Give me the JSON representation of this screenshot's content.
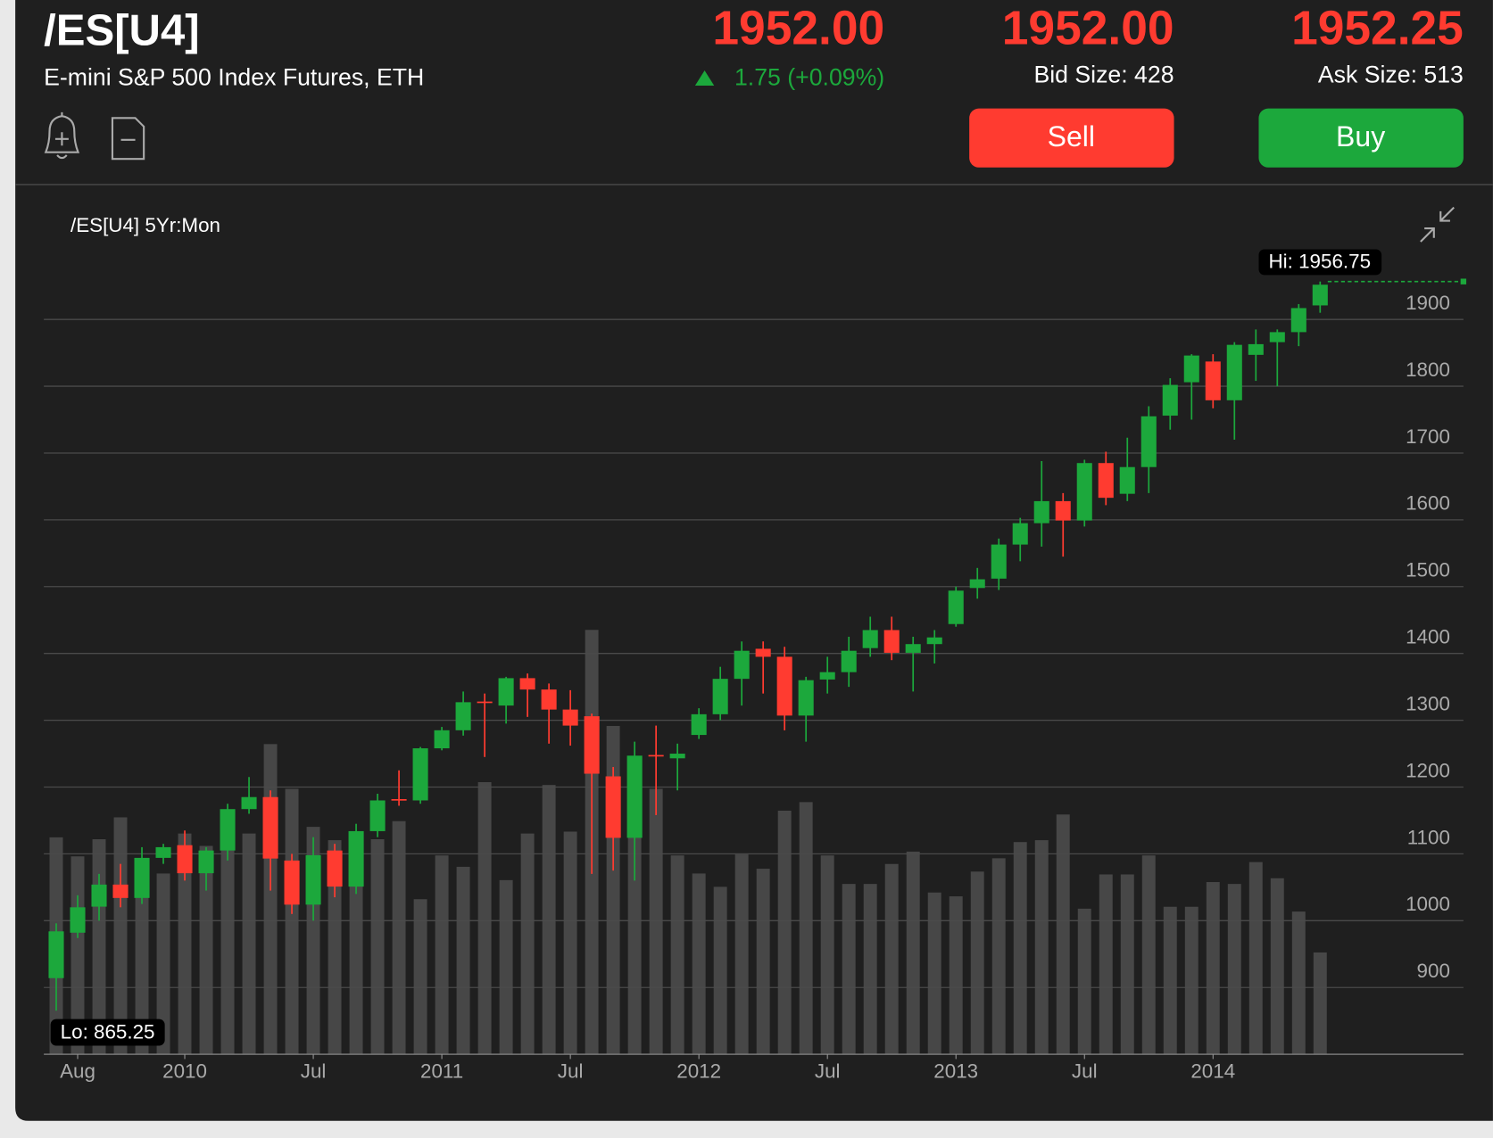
{
  "header": {
    "symbol": "/ES[U4]",
    "description": "E-mini S&P 500 Index Futures, ETH",
    "last": "1952.00",
    "change": "1.75 (+0.09%)",
    "bid": "1952.00",
    "bid_size": "Bid Size: 428",
    "ask": "1952.25",
    "ask_size": "Ask Size: 513",
    "sell": "Sell",
    "buy": "Buy"
  },
  "chart_data": {
    "type": "candlestick",
    "title": "/ES[U4] 5Yr:Mon",
    "categories": [
      null,
      "Aug",
      null,
      null,
      null,
      null,
      "2010",
      null,
      null,
      null,
      null,
      null,
      "Jul",
      null,
      null,
      null,
      null,
      null,
      "2011",
      null,
      null,
      null,
      null,
      null,
      "Jul",
      null,
      null,
      null,
      null,
      null,
      "2012",
      null,
      null,
      null,
      null,
      null,
      "Jul",
      null,
      null,
      null,
      null,
      null,
      "2013",
      null,
      null,
      null,
      null,
      null,
      "Jul",
      null,
      null,
      null,
      null,
      null,
      "2014",
      null,
      null,
      null,
      null,
      null
    ],
    "open": [
      914,
      982,
      1021,
      1054,
      1034,
      1094,
      1113,
      1071,
      1105,
      1167,
      1185,
      1090,
      1024,
      1105,
      1051,
      1134,
      1182,
      1180,
      1258,
      1285,
      1328,
      1322,
      1363,
      1346,
      1316,
      1306,
      1216,
      1124,
      1248,
      1243,
      1278,
      1309,
      1362,
      1407,
      1395,
      1307,
      1361,
      1372,
      1408,
      1435,
      1401,
      1414,
      1444,
      1498,
      1512,
      1563,
      1595,
      1628,
      1599,
      1685,
      1639,
      1679,
      1756,
      1806,
      1837,
      1779,
      1847,
      1866,
      1881,
      1921
    ],
    "high": [
      996,
      1038,
      1070,
      1085,
      1110,
      1115,
      1135,
      1110,
      1175,
      1215,
      1195,
      1100,
      1125,
      1115,
      1145,
      1190,
      1225,
      1260,
      1290,
      1343,
      1340,
      1365,
      1370,
      1355,
      1345,
      1310,
      1230,
      1268,
      1292,
      1265,
      1318,
      1380,
      1418,
      1418,
      1410,
      1365,
      1395,
      1425,
      1455,
      1455,
      1425,
      1435,
      1500,
      1528,
      1572,
      1603,
      1688,
      1640,
      1690,
      1702,
      1723,
      1770,
      1812,
      1848,
      1848,
      1866,
      1885,
      1885,
      1923,
      1956.75
    ],
    "low": [
      865.25,
      974,
      1000,
      1020,
      1025,
      1085,
      1060,
      1045,
      1090,
      1160,
      1045,
      1010,
      1000,
      1035,
      1040,
      1125,
      1172,
      1175,
      1255,
      1277,
      1245,
      1295,
      1305,
      1265,
      1262,
      1070,
      1075,
      1060,
      1158,
      1195,
      1272,
      1300,
      1322,
      1340,
      1285,
      1268,
      1340,
      1350,
      1395,
      1390,
      1343,
      1385,
      1440,
      1482,
      1495,
      1538,
      1560,
      1545,
      1590,
      1622,
      1628,
      1640,
      1735,
      1750,
      1767,
      1720,
      1808,
      1800,
      1860,
      1910
    ],
    "close": [
      984,
      1020,
      1054,
      1034,
      1094,
      1110,
      1071,
      1105,
      1167,
      1185,
      1093,
      1024,
      1098,
      1051,
      1134,
      1180,
      1180,
      1258,
      1285,
      1327,
      1326,
      1363,
      1346,
      1316,
      1292,
      1220,
      1124,
      1247,
      1246,
      1250,
      1309,
      1362,
      1404,
      1395,
      1307,
      1360,
      1372,
      1404,
      1435,
      1401,
      1414,
      1424,
      1494,
      1511,
      1563,
      1595,
      1628,
      1599,
      1685,
      1633,
      1679,
      1755,
      1802,
      1846,
      1779,
      1862,
      1863,
      1881,
      1917,
      1952
    ],
    "volume": [
      228,
      208,
      226,
      249,
      170,
      190,
      232,
      219,
      243,
      232,
      326,
      279,
      239,
      225,
      178,
      226,
      245,
      163,
      209,
      197,
      286,
      183,
      232,
      283,
      234,
      446,
      345,
      308,
      279,
      209,
      190,
      176,
      210,
      195,
      256,
      265,
      209,
      179,
      179,
      200,
      213,
      170,
      166,
      192,
      206,
      223,
      225,
      252,
      153,
      189,
      189,
      209,
      155,
      155,
      181,
      179,
      202,
      185,
      150,
      107
    ],
    "up_color": "#1ca83c",
    "down_color": "#ff3b30",
    "volume_color": "#474747",
    "ylim": [
      800,
      2005
    ],
    "yticks": [
      900,
      1000,
      1100,
      1200,
      1300,
      1400,
      1500,
      1600,
      1700,
      1800,
      1900
    ],
    "grid": true,
    "high_marker": {
      "value": 1956.75,
      "label": "Hi: 1956.75"
    },
    "low_marker": {
      "value": 865.25,
      "label": "Lo: 865.25"
    }
  }
}
